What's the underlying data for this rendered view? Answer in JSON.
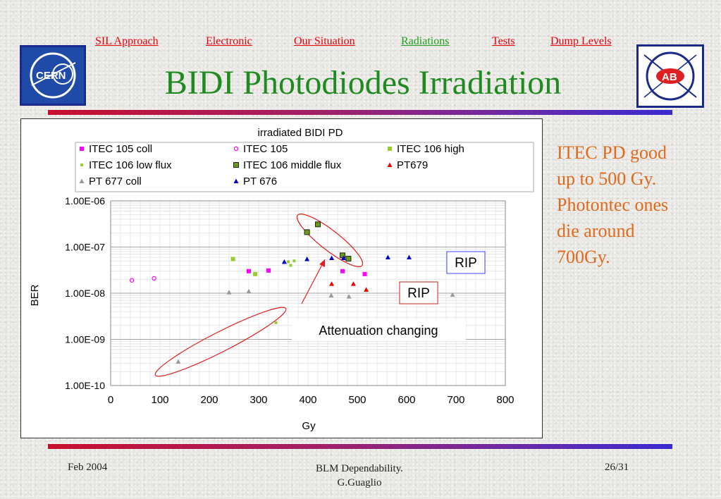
{
  "nav": {
    "items": [
      {
        "label": "SIL Approach",
        "active": false
      },
      {
        "label": "Electronic",
        "active": false
      },
      {
        "label": "Our Situation",
        "active": false
      },
      {
        "label": "Radiations",
        "active": true
      },
      {
        "label": "Tests",
        "active": false
      },
      {
        "label": "Dump Levels",
        "active": false
      }
    ],
    "link_color": "#e8000b",
    "active_color": "#20a020"
  },
  "slide": {
    "title": "BIDI Photodiodes Irradiation"
  },
  "logos": {
    "left_text": "CERN",
    "right_text": "AB"
  },
  "side_note": [
    "ITEC PD good",
    "up to 500 Gy.",
    "Photontec ones",
    "die around",
    "700Gy."
  ],
  "footer": {
    "date": "Feb 2004",
    "center_line1": "BLM Dependability.",
    "center_line2": "G.Guaglio",
    "page": "26/31"
  },
  "chart_data": {
    "type": "scatter",
    "title": "irradiated BIDI PD",
    "xlabel": "Gy",
    "ylabel": "BER",
    "xlim": [
      0,
      800
    ],
    "xticks": [
      0,
      100,
      200,
      300,
      400,
      500,
      600,
      700,
      800
    ],
    "ylim": [
      1e-10,
      1e-06
    ],
    "yscale": "log",
    "yticks": [
      {
        "value": 1e-06,
        "label": "1.00E-06"
      },
      {
        "value": 1e-07,
        "label": "1.00E-07"
      },
      {
        "value": 1e-08,
        "label": "1.00E-08"
      },
      {
        "value": 1e-09,
        "label": "1.00E-09"
      },
      {
        "value": 1e-10,
        "label": "1.00E-10"
      }
    ],
    "grid": true,
    "legend_position": "top",
    "series": [
      {
        "name": "ITEC 105 coll",
        "color": "#ff00ff",
        "marker": "square",
        "x": [
          280,
          320,
          470,
          515
        ],
        "y": [
          3e-08,
          3.1e-08,
          3e-08,
          2.6e-08
        ]
      },
      {
        "name": "ITEC 105",
        "color": "#ff00ff",
        "marker": "circle-open",
        "x": [
          43,
          88
        ],
        "y": [
          1.9e-08,
          2.1e-08
        ]
      },
      {
        "name": "ITEC 106 high",
        "color": "#99cc33",
        "marker": "square",
        "x": [
          248,
          293
        ],
        "y": [
          5.5e-08,
          2.6e-08
        ]
      },
      {
        "name": "ITEC 106 low flux",
        "color": "#99cc33",
        "marker": "square-small",
        "x": [
          335,
          360,
          365,
          372
        ],
        "y": [
          2.3e-09,
          4.8e-08,
          4e-08,
          5e-08
        ]
      },
      {
        "name": "ITEC 106 middle flux",
        "color": "#6a9a10",
        "marker": "square-outlined",
        "x": [
          398,
          420,
          470,
          482
        ],
        "y": [
          2.1e-07,
          3.1e-07,
          6.6e-08,
          5.6e-08
        ]
      },
      {
        "name": "PT679",
        "color": "#ee0000",
        "marker": "triangle",
        "x": [
          448,
          492,
          518
        ],
        "y": [
          1.6e-08,
          1.6e-08,
          1.2e-08
        ]
      },
      {
        "name": "PT 677 coll",
        "color": "#999999",
        "marker": "triangle",
        "x": [
          137,
          240,
          280,
          447,
          483,
          693
        ],
        "y": [
          3.3e-10,
          1.05e-08,
          1.1e-08,
          9e-09,
          8.5e-09,
          9.3e-09
        ]
      },
      {
        "name": "PT 676",
        "color": "#0000cc",
        "marker": "triangle",
        "x": [
          352,
          398,
          448,
          472,
          562,
          605
        ],
        "y": [
          4.8e-08,
          5.5e-08,
          5.8e-08,
          5.8e-08,
          6e-08,
          6e-08
        ]
      }
    ],
    "annotations": [
      {
        "text": "RIP",
        "box_color": "#4444ff"
      },
      {
        "text": "RIP",
        "box_color": "#cc2222"
      },
      {
        "text": "Attenuation changing",
        "box_color": "#ffffff"
      }
    ]
  }
}
